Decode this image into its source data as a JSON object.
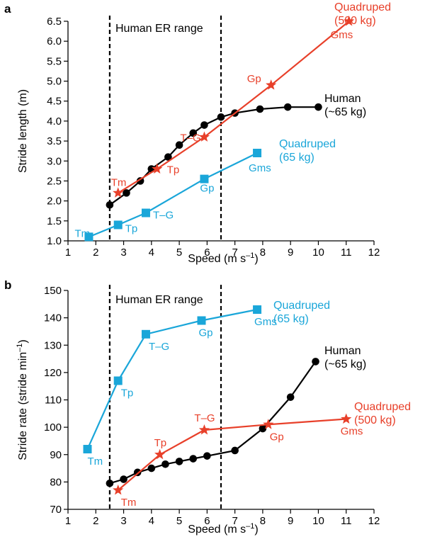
{
  "colors": {
    "human": "#000000",
    "quadruped65": "#1aa6d9",
    "quadruped500": "#e8402a",
    "axis": "#000000"
  },
  "chart_data": [
    {
      "panel": "a",
      "type": "line",
      "xlabel": "Speed",
      "xlabel_units": "(m s",
      "xlabel_sup": "–1",
      "xlabel_close": ")",
      "ylabel": "Stride length (m)",
      "xlim": [
        1,
        12
      ],
      "ylim": [
        1.0,
        6.5
      ],
      "xticks": [
        "1",
        "2",
        "3",
        "4",
        "5",
        "6",
        "7",
        "8",
        "9",
        "10",
        "11",
        "12"
      ],
      "yticks": [
        "1.0",
        "1.5",
        "2.0",
        "2.5",
        "3.0",
        "3.5",
        "4.0",
        "4.5",
        "5.0",
        "5.5",
        "6.0",
        "6.5"
      ],
      "range_label": "Human ER range",
      "range": [
        2.5,
        6.5
      ],
      "series": [
        {
          "name": "Human",
          "label_lines": [
            "Human",
            "(~65 kg)"
          ],
          "color_key": "human",
          "marker": "circle",
          "x": [
            2.5,
            3.1,
            3.6,
            4.0,
            4.6,
            5.0,
            5.5,
            5.9,
            6.5,
            7.0,
            7.9,
            8.9,
            10.0
          ],
          "y": [
            1.9,
            2.2,
            2.5,
            2.8,
            3.1,
            3.4,
            3.7,
            3.9,
            4.1,
            4.2,
            4.3,
            4.35,
            4.35
          ],
          "points": []
        },
        {
          "name": "Quadruped (65 kg)",
          "label_lines": [
            "Quadruped",
            "(65 kg)"
          ],
          "color_key": "quadruped65",
          "marker": "square",
          "x": [
            1.75,
            2.8,
            3.8,
            5.9,
            7.8
          ],
          "y": [
            1.1,
            1.4,
            1.7,
            2.55,
            3.2
          ],
          "points": [
            "Tm",
            "Tp",
            "T–G",
            "Gp",
            "Gms"
          ]
        },
        {
          "name": "Quadruped (500 kg)",
          "label_lines": [
            "Quadruped",
            "(500 kg)"
          ],
          "color_key": "quadruped500",
          "marker": "star",
          "x": [
            2.8,
            4.2,
            5.9,
            8.3,
            11.1
          ],
          "y": [
            2.2,
            2.8,
            3.6,
            4.9,
            6.5
          ],
          "points": [
            "Tm",
            "Tp",
            "T–G",
            "Gp",
            "Gms"
          ]
        }
      ]
    },
    {
      "panel": "b",
      "type": "line",
      "xlabel": "Speed",
      "xlabel_units": "(m s",
      "xlabel_sup": "–1",
      "xlabel_close": ")",
      "ylabel": "Stride rate (stride min",
      "ylabel_sup": "–1",
      "ylabel_close": ")",
      "xlim": [
        1,
        12
      ],
      "ylim": [
        70,
        150
      ],
      "xticks": [
        "1",
        "2",
        "3",
        "4",
        "5",
        "6",
        "7",
        "8",
        "9",
        "10",
        "11",
        "12"
      ],
      "yticks": [
        "70",
        "80",
        "90",
        "100",
        "110",
        "120",
        "130",
        "140",
        "150"
      ],
      "range_label": "Human ER range",
      "range": [
        2.5,
        6.5
      ],
      "series": [
        {
          "name": "Quadruped (65 kg)",
          "label_lines": [
            "Quadruped",
            "(65 kg)"
          ],
          "color_key": "quadruped65",
          "marker": "square",
          "x": [
            1.7,
            2.8,
            3.8,
            5.8,
            7.8
          ],
          "y": [
            92,
            117,
            134,
            139,
            143
          ],
          "points": [
            "Tm",
            "Tp",
            "T–G",
            "Gp",
            "Gms"
          ]
        },
        {
          "name": "Human",
          "label_lines": [
            "Human",
            "(~65 kg)"
          ],
          "color_key": "human",
          "marker": "circle",
          "x": [
            2.5,
            3.0,
            3.5,
            4.0,
            4.5,
            5.0,
            5.5,
            6.0,
            7.0,
            8.0,
            9.0,
            9.9
          ],
          "y": [
            79.5,
            81,
            83.5,
            85,
            86.5,
            87.5,
            88.5,
            89.5,
            91.5,
            99.5,
            111,
            124
          ],
          "points": []
        },
        {
          "name": "Quadruped (500 kg)",
          "label_lines": [
            "Quadruped",
            "(500 kg)"
          ],
          "color_key": "quadruped500",
          "marker": "star",
          "x": [
            2.8,
            4.3,
            5.9,
            8.2,
            11.0
          ],
          "y": [
            77,
            90,
            99,
            101,
            103
          ],
          "points": [
            "Tm",
            "Tp",
            "T–G",
            "Gp",
            "Gms"
          ]
        }
      ]
    }
  ]
}
